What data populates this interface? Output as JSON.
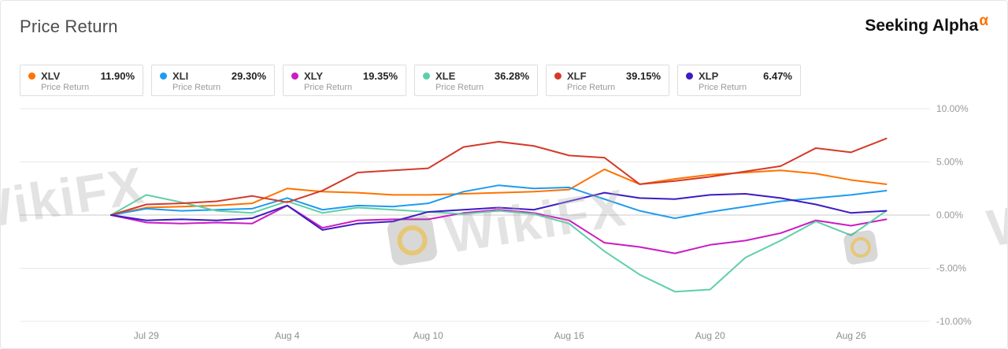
{
  "header": {
    "title": "Price Return",
    "brand": {
      "name": "Seeking Alpha",
      "alpha": "α"
    }
  },
  "legend": [
    {
      "ticker": "XLV",
      "value": "11.90%",
      "subtitle": "Price Return",
      "color": "#ff7200"
    },
    {
      "ticker": "XLI",
      "value": "29.30%",
      "subtitle": "Price Return",
      "color": "#1e9bf0"
    },
    {
      "ticker": "XLY",
      "value": "19.35%",
      "subtitle": "Price Return",
      "color": "#cb1bc4"
    },
    {
      "ticker": "XLE",
      "value": "36.28%",
      "subtitle": "Price Return",
      "color": "#5ecfa6"
    },
    {
      "ticker": "XLF",
      "value": "39.15%",
      "subtitle": "Price Return",
      "color": "#d43a2a"
    },
    {
      "ticker": "XLP",
      "value": "6.47%",
      "subtitle": "Price Return",
      "color": "#3d1bc2"
    }
  ],
  "watermark": {
    "text": "WikiFX"
  },
  "chart_data": {
    "type": "line",
    "title": "Price Return",
    "xlabel": "",
    "ylabel": "",
    "ylim": [
      -10,
      10
    ],
    "grid": true,
    "legend_position": "top",
    "y_ticks": [
      "10.00%",
      "5.00%",
      "0.00%",
      "-5.00%",
      "-10.00%"
    ],
    "y_tick_values": [
      10,
      5,
      0,
      -5,
      -10
    ],
    "x": [
      "Jul 28",
      "Jul 29",
      "Jul 30",
      "Aug 2",
      "Aug 3",
      "Aug 4",
      "Aug 5",
      "Aug 6",
      "Aug 9",
      "Aug 10",
      "Aug 11",
      "Aug 12",
      "Aug 13",
      "Aug 16",
      "Aug 17",
      "Aug 18",
      "Aug 19",
      "Aug 20",
      "Aug 23",
      "Aug 24",
      "Aug 25",
      "Aug 26",
      "Aug 27"
    ],
    "x_tick_labels": [
      "Jul 29",
      "Aug 4",
      "Aug 10",
      "Aug 16",
      "Aug 20",
      "Aug 26"
    ],
    "x_tick_indices": [
      1,
      5,
      9,
      13,
      17,
      21
    ],
    "unit": "percent",
    "series": [
      {
        "name": "XLV",
        "color": "#ff7200",
        "values": [
          0,
          0.7,
          0.8,
          0.9,
          1.1,
          2.5,
          2.2,
          2.1,
          1.9,
          1.9,
          2.0,
          2.1,
          2.2,
          2.4,
          4.3,
          2.9,
          3.4,
          3.8,
          4.0,
          4.2,
          3.9,
          3.3,
          2.9
        ]
      },
      {
        "name": "XLI",
        "color": "#1e9bf0",
        "values": [
          0,
          0.6,
          0.4,
          0.5,
          0.6,
          1.6,
          0.5,
          0.9,
          0.8,
          1.1,
          2.2,
          2.8,
          2.5,
          2.6,
          1.5,
          0.4,
          -0.3,
          0.3,
          0.8,
          1.3,
          1.6,
          1.9,
          2.3
        ]
      },
      {
        "name": "XLY",
        "color": "#cb1bc4",
        "values": [
          0,
          -0.7,
          -0.8,
          -0.7,
          -0.8,
          0.9,
          -1.2,
          -0.5,
          -0.4,
          -0.4,
          0.2,
          0.5,
          0.2,
          -0.5,
          -2.6,
          -3.0,
          -3.6,
          -2.8,
          -2.4,
          -1.7,
          -0.5,
          -1.0,
          -0.4
        ]
      },
      {
        "name": "XLE",
        "color": "#5ecfa6",
        "values": [
          0,
          1.9,
          1.2,
          0.4,
          0.2,
          1.3,
          0.2,
          0.7,
          0.5,
          0.3,
          0.1,
          0.4,
          0.1,
          -0.8,
          -3.4,
          -5.6,
          -7.2,
          -7.0,
          -4.0,
          -2.4,
          -0.6,
          -1.9,
          0.4
        ]
      },
      {
        "name": "XLF",
        "color": "#d43a2a",
        "values": [
          0,
          1.0,
          1.1,
          1.3,
          1.8,
          1.2,
          2.3,
          4.0,
          4.2,
          4.4,
          6.4,
          6.9,
          6.5,
          5.6,
          5.4,
          2.9,
          3.2,
          3.6,
          4.1,
          4.6,
          6.3,
          5.9,
          7.2
        ]
      },
      {
        "name": "XLP",
        "color": "#3d1bc2",
        "values": [
          0,
          -0.5,
          -0.4,
          -0.5,
          -0.3,
          0.9,
          -1.4,
          -0.8,
          -0.6,
          0.3,
          0.5,
          0.7,
          0.5,
          1.3,
          2.1,
          1.6,
          1.5,
          1.9,
          2.0,
          1.6,
          1.0,
          0.2,
          0.4
        ]
      }
    ]
  }
}
